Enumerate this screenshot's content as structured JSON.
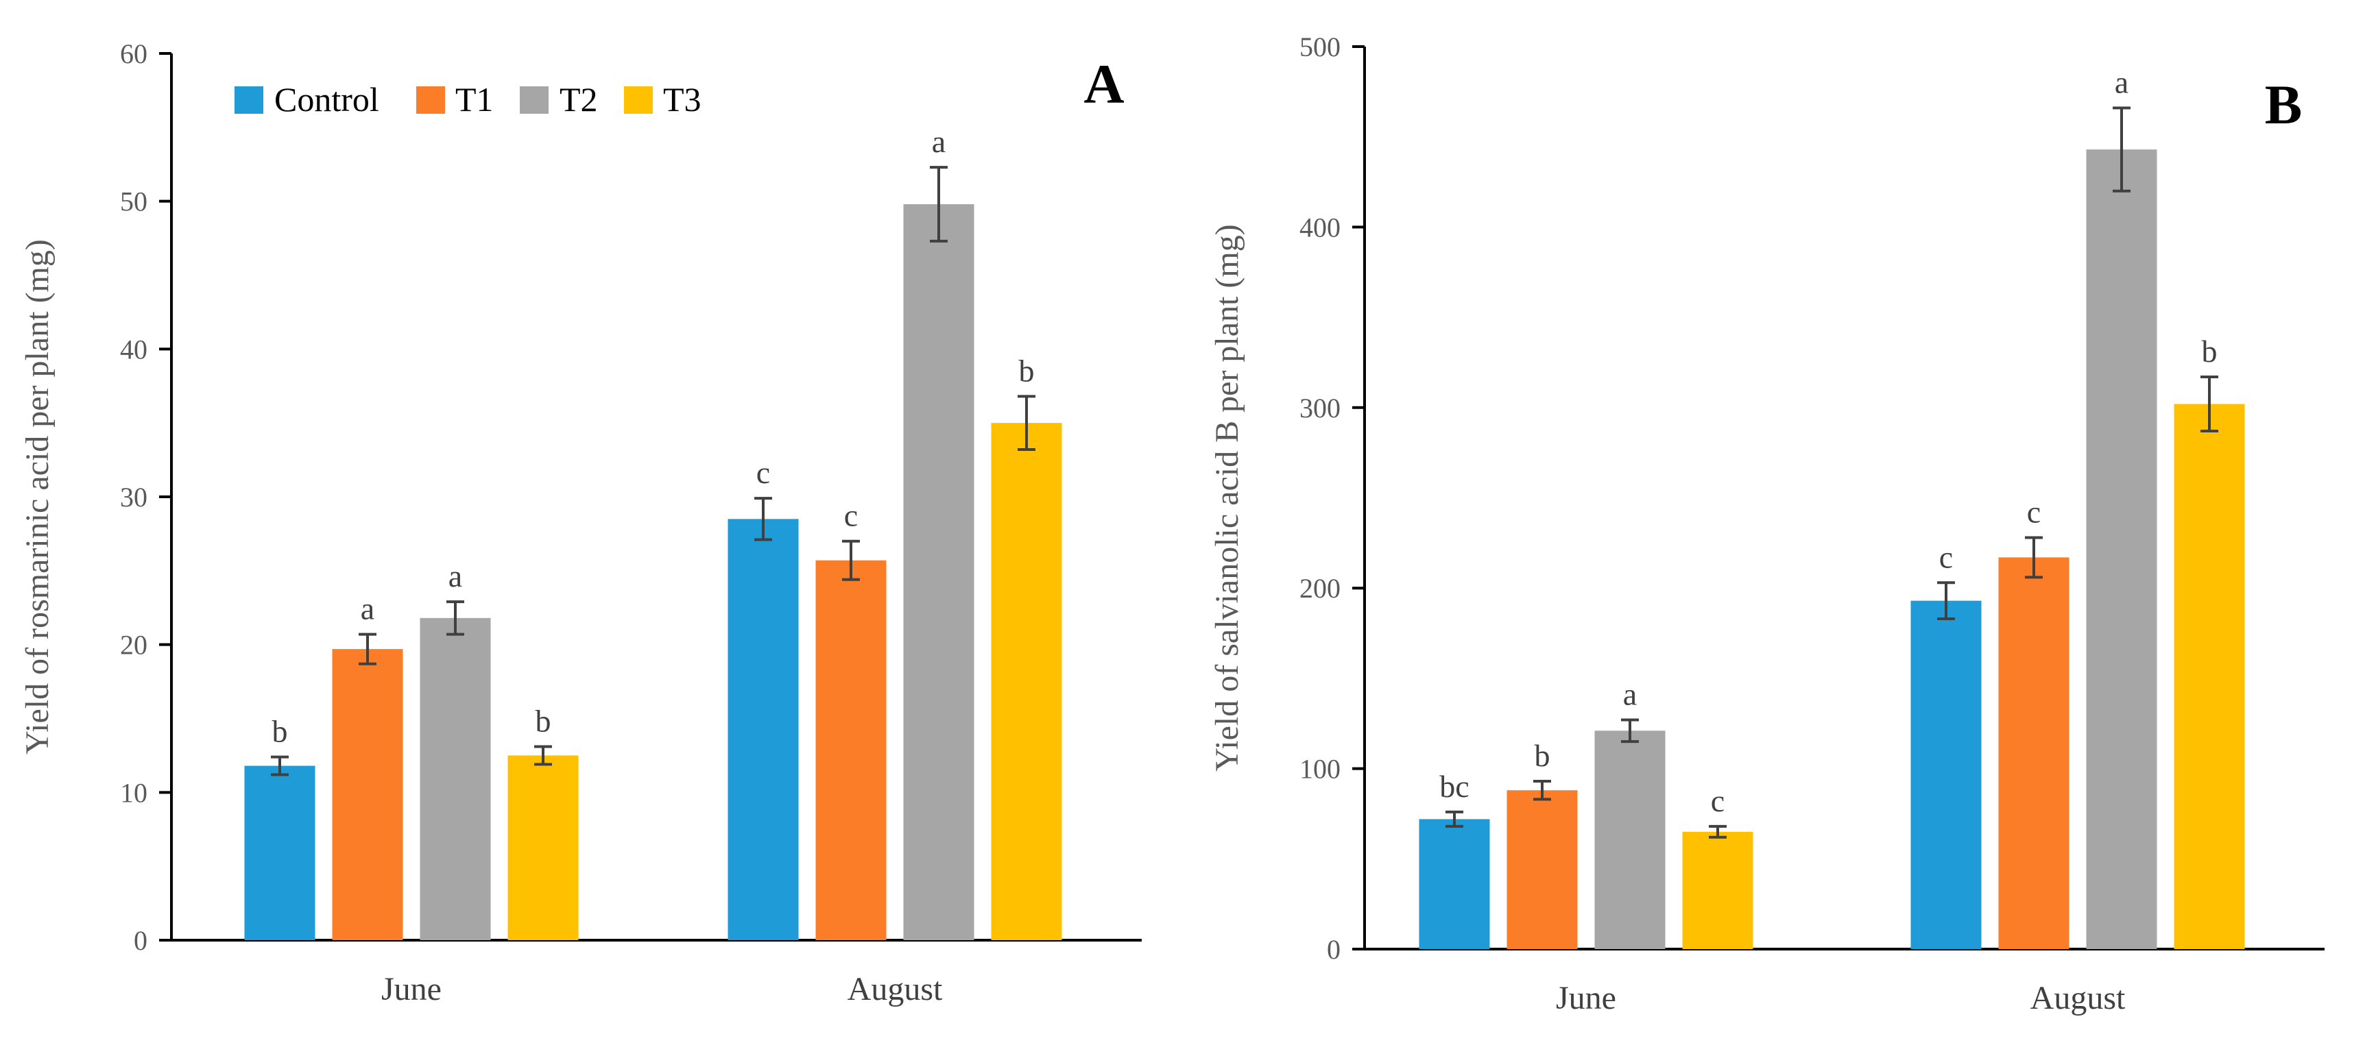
{
  "chart_data": [
    {
      "type": "bar",
      "panel": "A",
      "ylabel": "Yield of rosmarinic acid per plant (mg)",
      "xlabel": "",
      "categories": [
        "June",
        "August"
      ],
      "ylim": [
        0,
        60
      ],
      "yticks": [
        0,
        10,
        20,
        30,
        40,
        50,
        60
      ],
      "legend": {
        "position": "top-left"
      },
      "series": [
        {
          "name": "Control",
          "values": [
            11.8,
            28.5
          ],
          "errors": [
            0.6,
            1.4
          ],
          "letters": [
            "b",
            "c"
          ]
        },
        {
          "name": "T1",
          "values": [
            19.7,
            25.7
          ],
          "errors": [
            1.0,
            1.3
          ],
          "letters": [
            "a",
            "c"
          ]
        },
        {
          "name": "T2",
          "values": [
            21.8,
            49.8
          ],
          "errors": [
            1.1,
            2.5
          ],
          "letters": [
            "a",
            "a"
          ]
        },
        {
          "name": "T3",
          "values": [
            12.5,
            35.0
          ],
          "errors": [
            0.6,
            1.8
          ],
          "letters": [
            "b",
            "b"
          ]
        }
      ]
    },
    {
      "type": "bar",
      "panel": "B",
      "ylabel": "Yield of salvianolic acid B per plant (mg)",
      "xlabel": "",
      "categories": [
        "June",
        "August"
      ],
      "ylim": [
        0,
        500
      ],
      "yticks": [
        0,
        100,
        200,
        300,
        400,
        500
      ],
      "series": [
        {
          "name": "Control",
          "values": [
            72,
            193
          ],
          "errors": [
            4,
            10
          ],
          "letters": [
            "bc",
            "c"
          ]
        },
        {
          "name": "T1",
          "values": [
            88,
            217
          ],
          "errors": [
            5,
            11
          ],
          "letters": [
            "b",
            "c"
          ]
        },
        {
          "name": "T2",
          "values": [
            121,
            443
          ],
          "errors": [
            6,
            23
          ],
          "letters": [
            "a",
            "a"
          ]
        },
        {
          "name": "T3",
          "values": [
            65,
            302
          ],
          "errors": [
            3,
            15
          ],
          "letters": [
            "c",
            "b"
          ]
        }
      ]
    }
  ],
  "colors": {
    "Control": "#1f9bd7",
    "T1": "#fb7d28",
    "T2": "#a6a6a6",
    "T3": "#ffc000",
    "axis": "#000000",
    "error_bar": "#404040"
  }
}
